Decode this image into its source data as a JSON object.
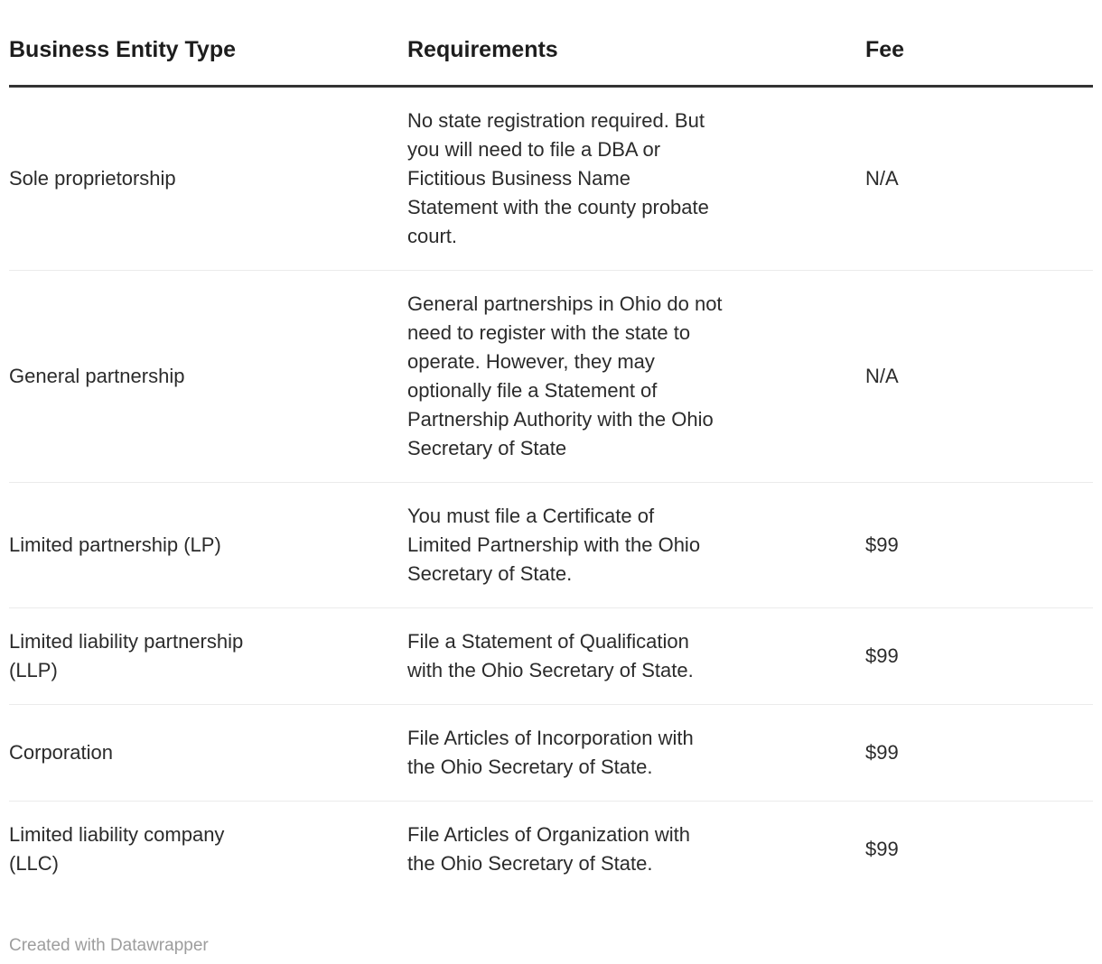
{
  "chart_data": {
    "type": "table",
    "columns": [
      "Business Entity Type",
      "Requirements",
      "Fee"
    ],
    "rows": [
      {
        "entity": "Sole proprietorship",
        "requirements": "No state registration required. But\nyou will need to file a DBA or\nFictitious Business Name\nStatement with the county probate\ncourt.",
        "fee": "N/A"
      },
      {
        "entity": "General partnership",
        "requirements": "General partnerships in Ohio do not\nneed to register with the state to\noperate. However, they may\noptionally file a Statement of\nPartnership Authority with the Ohio\nSecretary of State",
        "fee": "N/A"
      },
      {
        "entity": "Limited partnership (LP)",
        "requirements": "You must file a Certificate of\nLimited Partnership with the Ohio\nSecretary of State.",
        "fee": "$99"
      },
      {
        "entity": "Limited liability partnership\n(LLP)",
        "requirements": "File a Statement of Qualification\nwith the Ohio Secretary of State.",
        "fee": "$99"
      },
      {
        "entity": "Corporation",
        "requirements": "File Articles of Incorporation with\nthe Ohio Secretary of State.",
        "fee": "$99"
      },
      {
        "entity": "Limited liability company\n(LLC)",
        "requirements": "File Articles of Organization with\nthe Ohio Secretary of State.",
        "fee": "$99"
      }
    ],
    "footer": "Created with Datawrapper"
  },
  "colors": {
    "background": "#ffffff",
    "header_text": "#1d1d1d",
    "body_text": "#2b2b2b",
    "header_rule": "#333333",
    "row_divider": "#ebebeb",
    "attribution_text": "#9d9d9d"
  }
}
